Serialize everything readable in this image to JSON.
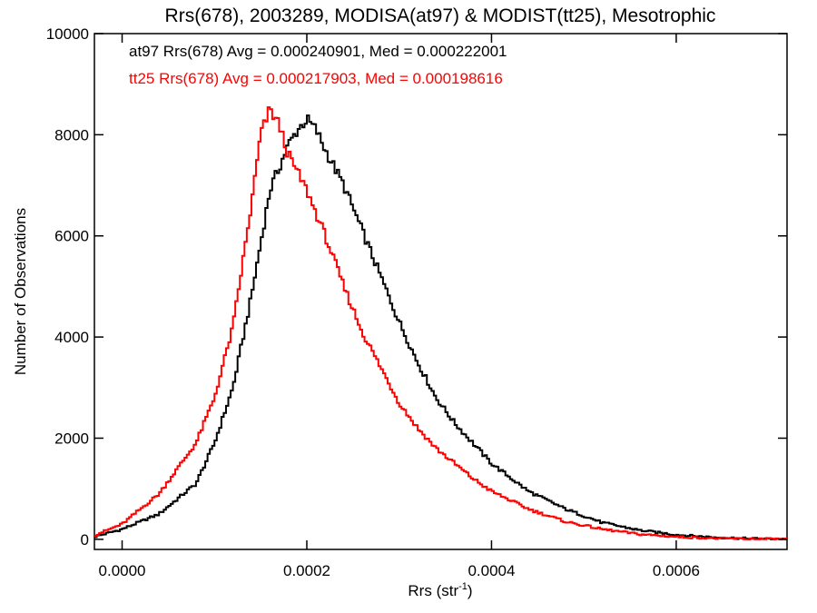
{
  "chart_data": {
    "type": "line",
    "step": true,
    "title": "Rrs(678), 2003289, MODISA(at97) & MODIST(tt25), Mesotrophic",
    "xlabel": "Rrs (str",
    "xlabel_sup": "-1",
    "xlabel_end": ")",
    "ylabel": "Number of Observations",
    "xlim": [
      -3e-05,
      0.00072
    ],
    "ylim": [
      -200,
      10000
    ],
    "xticks": [
      0.0,
      0.0002,
      0.0004,
      0.0006
    ],
    "xtick_labels": [
      "0.0000",
      "0.0002",
      "0.0004",
      "0.0006"
    ],
    "yticks": [
      0,
      2000,
      4000,
      6000,
      8000,
      10000
    ],
    "ytick_labels": [
      "0",
      "2000",
      "4000",
      "6000",
      "8000",
      "10000"
    ],
    "grid": false,
    "legend_position": "top-left",
    "series": [
      {
        "name": "at97",
        "color": "#000000",
        "annotation": "at97 Rrs(678) Avg = 0.000240901, Med = 0.000222001",
        "x": [
          -3e-05,
          0.0,
          4e-05,
          8e-05,
          0.0001,
          0.00012,
          0.00014,
          0.00016,
          0.00018,
          0.00019,
          0.0002,
          0.00021,
          0.00022,
          0.00024,
          0.00026,
          0.00028,
          0.0003,
          0.00032,
          0.00034,
          0.00036,
          0.00038,
          0.0004,
          0.00044,
          0.00048,
          0.00052,
          0.00056,
          0.0006,
          0.00064,
          0.00068,
          0.00072
        ],
        "y": [
          50,
          200,
          500,
          1100,
          1900,
          3000,
          4800,
          6900,
          7800,
          8100,
          8300,
          8100,
          7700,
          7000,
          6100,
          5200,
          4300,
          3500,
          2800,
          2300,
          1900,
          1500,
          950,
          600,
          330,
          180,
          90,
          40,
          15,
          5
        ]
      },
      {
        "name": "tt25",
        "color": "#ff0000",
        "annotation": "tt25 Rrs(678) Avg = 0.000217903, Med = 0.000198616",
        "x": [
          -3e-05,
          0.0,
          4e-05,
          8e-05,
          0.0001,
          0.00012,
          0.00014,
          0.00015,
          0.00016,
          0.00017,
          0.00018,
          0.0002,
          0.00022,
          0.00024,
          0.00026,
          0.00028,
          0.0003,
          0.00032,
          0.00034,
          0.00036,
          0.00038,
          0.0004,
          0.00044,
          0.00048,
          0.00052,
          0.00056,
          0.0006,
          0.00064,
          0.00068,
          0.00072
        ],
        "y": [
          80,
          300,
          900,
          1900,
          2800,
          4200,
          6600,
          8000,
          8500,
          8200,
          7600,
          6900,
          6000,
          5000,
          4100,
          3400,
          2700,
          2200,
          1800,
          1500,
          1200,
          950,
          600,
          350,
          200,
          100,
          50,
          20,
          8,
          3
        ]
      }
    ]
  }
}
